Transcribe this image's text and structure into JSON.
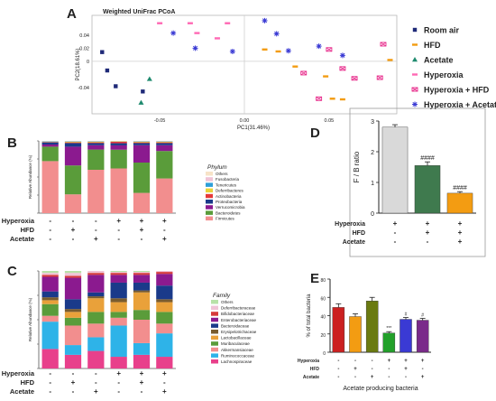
{
  "chart_data": [
    {
      "panel": "A",
      "type": "scatter",
      "title": "Weighted UniFrac PCoA",
      "xlabel": "PC1(31.46%)",
      "ylabel": "PC2(18.61%)",
      "xlim": [
        -0.09,
        0.09
      ],
      "ylim": [
        -0.08,
        0.07
      ],
      "xticks": [
        -0.05,
        0,
        0.05
      ],
      "yticks": [
        0.04,
        0.02,
        0,
        -0.04
      ],
      "tick_labels_x": [
        "-0.05",
        "0.00",
        "0.05"
      ],
      "tick_labels_y": [
        "0.04",
        "0.02",
        "0",
        "-0.04"
      ],
      "series": [
        {
          "name": "Room air",
          "color": "#1f2a78",
          "marker": "square",
          "points": [
            [
              -0.084,
              0.014
            ],
            [
              -0.081,
              -0.014
            ],
            [
              -0.076,
              -0.038
            ],
            [
              -0.06,
              -0.046
            ]
          ]
        },
        {
          "name": "HFD",
          "color": "#f39c12",
          "marker": "dash",
          "points": [
            [
              0.012,
              0.018
            ],
            [
              0.02,
              0.015
            ],
            [
              0.03,
              -0.008
            ],
            [
              0.048,
              -0.023
            ],
            [
              0.052,
              -0.057
            ],
            [
              0.058,
              -0.058
            ],
            [
              0.086,
              0.002
            ]
          ]
        },
        {
          "name": "Acetate",
          "color": "#1e8a6e",
          "marker": "triangle",
          "points": [
            [
              -0.056,
              -0.027
            ],
            [
              -0.061,
              -0.063
            ]
          ]
        },
        {
          "name": "Hyperoxia",
          "color": "#ff69b4",
          "marker": "dash",
          "points": [
            [
              -0.05,
              0.058
            ],
            [
              -0.032,
              0.058
            ],
            [
              -0.028,
              0.043
            ],
            [
              -0.016,
              0.035
            ],
            [
              -0.01,
              0.058
            ]
          ]
        },
        {
          "name": "Hyperoxia + HFD",
          "color": "#e7298a",
          "marker": "boxx",
          "points": [
            [
              0.035,
              -0.018
            ],
            [
              0.05,
              0.018
            ],
            [
              0.058,
              -0.011
            ],
            [
              0.065,
              -0.026
            ],
            [
              0.08,
              -0.025
            ],
            [
              0.082,
              0.026
            ],
            [
              0.044,
              -0.057
            ]
          ]
        },
        {
          "name": "Hyperoxia + Acetate",
          "color": "#3a3ad4",
          "marker": "star",
          "points": [
            [
              -0.042,
              0.043
            ],
            [
              -0.029,
              0.02
            ],
            [
              -0.007,
              0.015
            ],
            [
              0.012,
              0.062
            ],
            [
              0.019,
              0.042
            ],
            [
              0.026,
              0.016
            ],
            [
              0.044,
              0.023
            ],
            [
              0.058,
              0.009
            ]
          ]
        }
      ],
      "grid": false,
      "legend_position": "right"
    },
    {
      "panel": "B",
      "type": "bar",
      "stacked": true,
      "ylabel": "Relative Abundance (%)",
      "ylim": [
        0,
        100
      ],
      "legend_title": "Phylum",
      "groups": {
        "Hyperoxia": [
          "-",
          "-",
          "-",
          "+",
          "+",
          "+"
        ],
        "HFD": [
          "-",
          "+",
          "-",
          "-",
          "+",
          "-"
        ],
        "Acetate": [
          "-",
          "-",
          "+",
          "-",
          "-",
          "+"
        ]
      },
      "series": [
        {
          "name": "Firmicutes",
          "color": "#f28e8e",
          "values": [
            72,
            26,
            60,
            62,
            28,
            48
          ]
        },
        {
          "name": "Bacteroidetes",
          "color": "#5a9c3a",
          "values": [
            20,
            40,
            28,
            26,
            42,
            38
          ]
        },
        {
          "name": "Verrucomicrobia",
          "color": "#8b1a8f",
          "values": [
            3,
            26,
            6,
            6,
            24,
            8
          ]
        },
        {
          "name": "Proteobacteria",
          "color": "#1a3a8a",
          "values": [
            3,
            5,
            3,
            3,
            3,
            3
          ]
        },
        {
          "name": "Actinobacteria",
          "color": "#e63939",
          "values": [
            0.5,
            1,
            1,
            2,
            1,
            1
          ]
        },
        {
          "name": "Deferribacteres",
          "color": "#e9d43a",
          "values": [
            0.5,
            1,
            1,
            0.5,
            1,
            1
          ]
        },
        {
          "name": "Tenericutes",
          "color": "#2e9fd8",
          "values": [
            0.5,
            0.5,
            0.5,
            0.3,
            0.5,
            0.5
          ]
        },
        {
          "name": "Fusobacteria",
          "color": "#f0c3d6",
          "values": [
            0.3,
            0.3,
            0.3,
            0.2,
            0.3,
            0.3
          ]
        },
        {
          "name": "Others",
          "color": "#f7e3c7",
          "values": [
            0.2,
            0.2,
            0.2,
            0.2,
            0.2,
            0.2
          ]
        }
      ]
    },
    {
      "panel": "C",
      "type": "bar",
      "stacked": true,
      "ylabel": "Relative Abundance (%)",
      "ylim": [
        0,
        100
      ],
      "legend_title": "Family",
      "groups": {
        "Hyperoxia": [
          "-",
          "-",
          "-",
          "+",
          "+",
          "+"
        ],
        "HFD": [
          "-",
          "+",
          "-",
          "-",
          "+",
          "-"
        ],
        "Acetate": [
          "-",
          "-",
          "+",
          "-",
          "-",
          "+"
        ]
      },
      "series": [
        {
          "name": "Lachnospiraceae",
          "color": "#e8408b",
          "values": [
            20,
            14,
            18,
            12,
            14,
            12
          ]
        },
        {
          "name": "Ruminococcaceae",
          "color": "#2eb3e8",
          "values": [
            28,
            10,
            14,
            32,
            12,
            24
          ]
        },
        {
          "name": "Akkermansiaceae",
          "color": "#f28e8e",
          "values": [
            6,
            20,
            14,
            8,
            24,
            10
          ]
        },
        {
          "name": "Muribaculaceae",
          "color": "#5a9c3a",
          "values": [
            12,
            8,
            12,
            6,
            10,
            12
          ]
        },
        {
          "name": "Lactobacillaceae",
          "color": "#e9a13a",
          "values": [
            4,
            6,
            14,
            10,
            18,
            10
          ]
        },
        {
          "name": "Erysipelotrichaceae",
          "color": "#7a5c2e",
          "values": [
            3,
            3,
            2,
            4,
            2,
            3
          ]
        },
        {
          "name": "Bacteroidaceae",
          "color": "#1a3a8a",
          "values": [
            6,
            10,
            4,
            16,
            8,
            14
          ]
        },
        {
          "name": "Enterobacteriaceae",
          "color": "#8b1a8f",
          "values": [
            15,
            22,
            18,
            8,
            8,
            12
          ]
        },
        {
          "name": "Bifidobacteriaceae",
          "color": "#d63a3a",
          "values": [
            2,
            2,
            2,
            2,
            2,
            2
          ]
        },
        {
          "name": "Deferribacteraceae",
          "color": "#f0c3d6",
          "values": [
            2,
            3,
            2,
            1,
            1,
            1
          ]
        },
        {
          "name": "Others",
          "color": "#b8e2a8",
          "values": [
            2,
            2,
            0,
            1,
            1,
            0
          ]
        }
      ]
    },
    {
      "panel": "D",
      "type": "bar",
      "ylabel": "F / B ratio",
      "ylim": [
        0,
        3
      ],
      "yticks": [
        0,
        1,
        2,
        3
      ],
      "groups": {
        "Hyperoxia": [
          "+",
          "+",
          "+"
        ],
        "HFD": [
          "-",
          "+",
          "+"
        ],
        "Acetate": [
          "-",
          "-",
          "+"
        ]
      },
      "values": [
        2.8,
        1.55,
        0.65
      ],
      "errors": [
        0.08,
        0.12,
        0.05
      ],
      "colors": [
        "#d9d9d9",
        "#3f7a4e",
        "#f39c12"
      ],
      "annotations": [
        "",
        "####",
        "####"
      ]
    },
    {
      "panel": "E",
      "type": "bar",
      "ylabel": "% of total bacteria",
      "xlabel": "Acetate producing bacteria",
      "ylim": [
        0,
        80
      ],
      "yticks": [
        0,
        20,
        40,
        60,
        80
      ],
      "groups": {
        "Hyperoxia": [
          "-",
          "-",
          "-",
          "+",
          "+",
          "+"
        ],
        "HFD": [
          "-",
          "+",
          "-",
          "-",
          "+",
          "-"
        ],
        "Acetate": [
          "-",
          "-",
          "+",
          "-",
          "-",
          "+"
        ]
      },
      "values": [
        49,
        39,
        56,
        21,
        36,
        35
      ],
      "errors": [
        4,
        3,
        4,
        1.5,
        2,
        2
      ],
      "colors": [
        "#cc2020",
        "#f39c12",
        "#6a7a10",
        "#22a02a",
        "#3a3ad4",
        "#7a2a8a"
      ],
      "annotations": [
        "",
        "",
        "",
        "***",
        "#",
        "#"
      ]
    }
  ],
  "panel_letters": {
    "a": "A",
    "b": "B",
    "c": "C",
    "d": "D",
    "e": "E"
  },
  "row_labels": {
    "hyperoxia": "Hyperoxia",
    "hfd": "HFD",
    "acetate": "Acetate"
  }
}
